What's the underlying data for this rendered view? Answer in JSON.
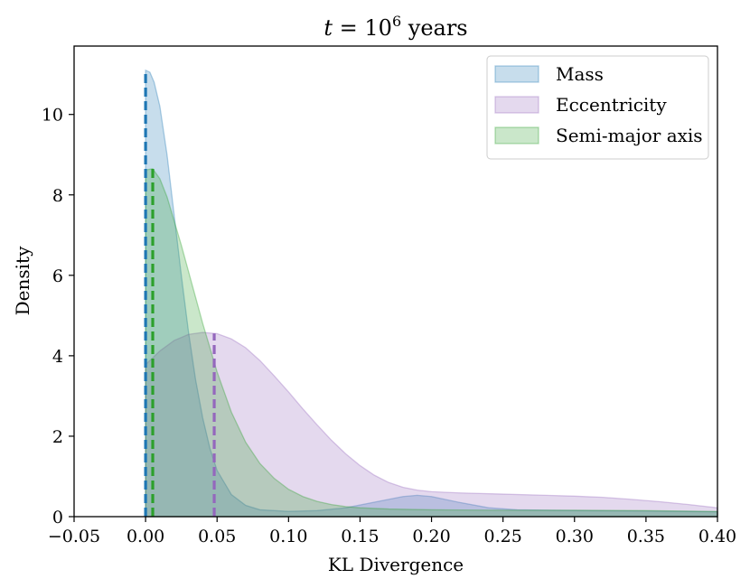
{
  "chart_data": {
    "type": "area",
    "title": "t = 10^6 years",
    "title_parts": {
      "variable": "t",
      "equals": " = ",
      "base": "10",
      "exponent": "6",
      "unit": " years"
    },
    "xlabel": "KL Divergence",
    "ylabel": "Density",
    "xlim": [
      -0.05,
      0.4
    ],
    "ylim": [
      0,
      11.7
    ],
    "xticks": [
      -0.05,
      0.0,
      0.05,
      0.1,
      0.15,
      0.2,
      0.25,
      0.3,
      0.35,
      0.4
    ],
    "xtick_labels": [
      "−0.05",
      "0.00",
      "0.05",
      "0.10",
      "0.15",
      "0.20",
      "0.25",
      "0.30",
      "0.35",
      "0.40"
    ],
    "yticks": [
      0,
      2,
      4,
      6,
      8,
      10
    ],
    "ytick_labels": [
      "0",
      "2",
      "4",
      "6",
      "8",
      "10"
    ],
    "grid": false,
    "legend_position": "top-right",
    "series": [
      {
        "name": "Mass",
        "fill": "#1f77b4",
        "stroke": "#1f77b4",
        "line": "#1f77b4",
        "marker_x": 0.0,
        "points": [
          [
            0.0,
            11.1
          ],
          [
            0.003,
            11.05
          ],
          [
            0.006,
            10.8
          ],
          [
            0.01,
            10.2
          ],
          [
            0.015,
            9.0
          ],
          [
            0.02,
            7.5
          ],
          [
            0.025,
            6.0
          ],
          [
            0.03,
            4.6
          ],
          [
            0.035,
            3.4
          ],
          [
            0.04,
            2.45
          ],
          [
            0.045,
            1.7
          ],
          [
            0.05,
            1.15
          ],
          [
            0.06,
            0.55
          ],
          [
            0.07,
            0.28
          ],
          [
            0.08,
            0.17
          ],
          [
            0.1,
            0.13
          ],
          [
            0.12,
            0.15
          ],
          [
            0.14,
            0.22
          ],
          [
            0.16,
            0.36
          ],
          [
            0.18,
            0.5
          ],
          [
            0.19,
            0.53
          ],
          [
            0.2,
            0.5
          ],
          [
            0.22,
            0.35
          ],
          [
            0.24,
            0.22
          ],
          [
            0.26,
            0.17
          ],
          [
            0.3,
            0.15
          ],
          [
            0.35,
            0.14
          ],
          [
            0.4,
            0.12
          ]
        ]
      },
      {
        "name": "Eccentricity",
        "fill": "#9467bd",
        "stroke": "#9467bd",
        "line": "#9467bd",
        "marker_x": 0.048,
        "points": [
          [
            0.0,
            3.78
          ],
          [
            0.005,
            3.95
          ],
          [
            0.01,
            4.12
          ],
          [
            0.02,
            4.38
          ],
          [
            0.03,
            4.53
          ],
          [
            0.04,
            4.58
          ],
          [
            0.05,
            4.55
          ],
          [
            0.06,
            4.42
          ],
          [
            0.07,
            4.2
          ],
          [
            0.08,
            3.88
          ],
          [
            0.09,
            3.5
          ],
          [
            0.1,
            3.1
          ],
          [
            0.11,
            2.68
          ],
          [
            0.12,
            2.28
          ],
          [
            0.13,
            1.9
          ],
          [
            0.14,
            1.56
          ],
          [
            0.15,
            1.27
          ],
          [
            0.16,
            1.03
          ],
          [
            0.17,
            0.85
          ],
          [
            0.18,
            0.73
          ],
          [
            0.19,
            0.66
          ],
          [
            0.2,
            0.62
          ],
          [
            0.22,
            0.59
          ],
          [
            0.25,
            0.56
          ],
          [
            0.28,
            0.53
          ],
          [
            0.3,
            0.51
          ],
          [
            0.32,
            0.48
          ],
          [
            0.34,
            0.43
          ],
          [
            0.36,
            0.37
          ],
          [
            0.38,
            0.3
          ],
          [
            0.4,
            0.22
          ]
        ]
      },
      {
        "name": "Semi-major axis",
        "fill": "#2ca02c",
        "stroke": "#2ca02c",
        "line": "#2ca02c",
        "marker_x": 0.005,
        "points": [
          [
            0.0,
            8.62
          ],
          [
            0.005,
            8.65
          ],
          [
            0.01,
            8.4
          ],
          [
            0.015,
            7.95
          ],
          [
            0.02,
            7.35
          ],
          [
            0.025,
            6.75
          ],
          [
            0.03,
            6.1
          ],
          [
            0.035,
            5.45
          ],
          [
            0.04,
            4.8
          ],
          [
            0.045,
            4.2
          ],
          [
            0.05,
            3.6
          ],
          [
            0.06,
            2.6
          ],
          [
            0.07,
            1.85
          ],
          [
            0.08,
            1.32
          ],
          [
            0.09,
            0.95
          ],
          [
            0.1,
            0.68
          ],
          [
            0.11,
            0.5
          ],
          [
            0.12,
            0.38
          ],
          [
            0.13,
            0.3
          ],
          [
            0.14,
            0.25
          ],
          [
            0.15,
            0.22
          ],
          [
            0.17,
            0.19
          ],
          [
            0.2,
            0.17
          ],
          [
            0.25,
            0.16
          ],
          [
            0.3,
            0.16
          ],
          [
            0.35,
            0.15
          ],
          [
            0.4,
            0.13
          ]
        ]
      }
    ]
  }
}
